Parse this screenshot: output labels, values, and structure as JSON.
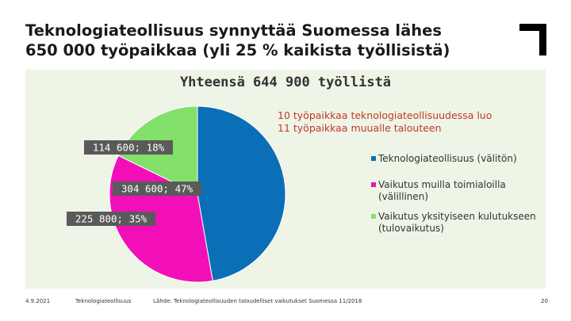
{
  "slide": {
    "title_line1": "Teknologiateollisuus synnyttää Suomessa lähes",
    "title_line2": "650 000 työpaikkaa (yli 25 % kaikista työllisistä)"
  },
  "chart_data": {
    "type": "pie",
    "title": "Yhteensä 644 900 työllistä",
    "annotation_lines": [
      "10 työpaikkaa teknologiateollisuudessa luo",
      "11 työpaikkaa muualle talouteen"
    ],
    "slices": [
      {
        "label": "Teknologiateollisuus (välitön)",
        "legend_lines": [
          "Teknologiateollisuus (välitön)"
        ],
        "value": 304600,
        "percent": 47,
        "data_label": "304 600; 47%",
        "color": "#0b6fb8"
      },
      {
        "label": "Vaikutus muilla toimialoilla (välillinen)",
        "legend_lines": [
          "Vaikutus muilla toimialoilla",
          "(välillinen)"
        ],
        "value": 225800,
        "percent": 35,
        "data_label": "225 800; 35%",
        "color": "#f20fb8"
      },
      {
        "label": "Vaikutus yksityiseen kulutukseen (tulovaikutus)",
        "legend_lines": [
          "Vaikutus yksityiseen kulutukseen",
          "(tulovaikutus)"
        ],
        "value": 114600,
        "percent": 18,
        "data_label": "114 600; 18%",
        "color": "#82e06b"
      }
    ],
    "legend_placement": "right"
  },
  "footer": {
    "date": "4.9.2021",
    "org": "Teknologiateollisuus",
    "source": "Lähde: Teknologiateollisuuden taloudelliset vaikutukset Suomessa 11/2018",
    "page": "20"
  },
  "colors": {
    "title_text": "#1a1a1a",
    "chart_background": "#eef4e6",
    "annotation_text": "#c0392b",
    "data_label_background": "#5a5a5a",
    "data_label_text": "#ffffff"
  }
}
